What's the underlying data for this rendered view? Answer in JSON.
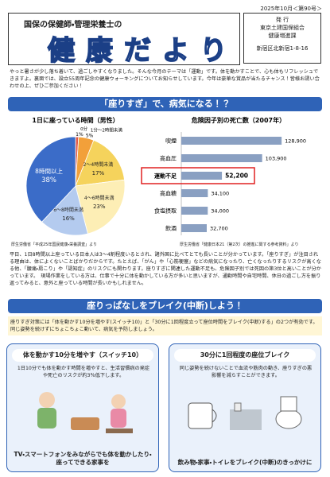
{
  "header": {
    "issue": "2025年10月＜第90号＞",
    "subtitle": "国保の保健師・管理栄養士の",
    "title": "健康だより",
    "publisher": {
      "label": "発 行",
      "org": "東京土建国保組合",
      "dept": "健康増進課",
      "address": "新宿区北新宿1-8-16"
    }
  },
  "intro": "やっと暑さが少し落ち着いて、過ごしやすくなりました。そんな今月のテーマは「運動」です。体を動かすことで、心も体もリフレッシュできますよ。裏面では、設立55周年記念の健康ウォーキングについてお知らせしています。今年は豪華な賞品が当たるチャンス！皆様お誘い合わせの上、ぜひご参加ください！",
  "section1": {
    "heading": "「座りすぎ」で、病気になる！？",
    "body": "平日、1日8時間以上座っている日本人は3～4割程度いるとされ、諸外国に比べてとても長いことが分かっています。「座りすぎ」が注目される理由は、体によくないことばかりだからです。たとえば、「がん」や「心筋梗塞」などの病気になったり、亡くなったりするリスクが高くなる他、「腰痛・肩こり」や「認知症」のリスクにも関わります。座りすぎに関連した運動不足も、危険因子別では死因の第3位と高いことが分かっています。　現場作業をしている方は、仕事で十分に体を動かしている方が多いと思いますが、通勤時間や自宅時間、休日の過ごし方を振り返ってみると、意外と座っている時間が長いかもしれません。"
  },
  "chart_data": [
    {
      "type": "pie",
      "title": "1日に座っている時間（男性）",
      "categories": [
        "0分",
        "1分～2時間未満",
        "2～4時間未満",
        "4～6時間未満",
        "6～8時間未満",
        "8時間以上"
      ],
      "values": [
        1,
        5,
        17,
        23,
        16,
        38
      ],
      "value_labels": [
        "1%",
        "5%",
        "17%",
        "23%",
        "16%",
        "38%"
      ],
      "colors": [
        "#e05a4a",
        "#f2a03a",
        "#f5d35c",
        "#fdeeb5",
        "#b4cbef",
        "#3b6cc8"
      ],
      "source": "厚生労働省「平成25年国民健康・栄養調査」より"
    },
    {
      "type": "hbar",
      "title": "危険因子別の死亡数（2007年）",
      "categories": [
        "喫煙",
        "高血圧",
        "運動不足",
        "高血糖",
        "食塩摂取",
        "飲酒"
      ],
      "values": [
        128900,
        103900,
        52200,
        34100,
        34000,
        32700
      ],
      "value_labels": [
        "128,900",
        "103,900",
        "52,200",
        "34,100",
        "34,000",
        "32,700"
      ],
      "xlim": [
        0,
        140000
      ],
      "color": "#8aa0c2",
      "highlight": 2,
      "highlight_color": "#e02020",
      "source": "厚生労働省「健康日本21（第2次）の推進に関する参考資料」より"
    }
  ],
  "section2": {
    "heading": "座りっぱなしをブレイク(中断)しよう！",
    "lead": "座りすぎ対策には「体を動かす10分を増やす(スイッチ10)」と「30分に1回程度立って座位時間をブレイク(中断)する」の2つが有効です。同じ姿勢を続けずにちょこちょこ動いて、病気を予防しましょう。",
    "boxes": [
      {
        "title": "体を動かす10分を増やす（スイッチ10）",
        "text": "1日10分でも体を動かす時間を増やすと、生活習慣病の発症や死亡のリスクが約3％低下します。",
        "caption": "TV・スマートフォンをみながらでも体を動かしたり・座ってできる家事を"
      },
      {
        "title": "30分に1回程度の座位ブレイク",
        "text": "同じ姿勢を続けないことで血流や筋肉の動き、座りすぎの悪影響を減らすことができます。",
        "caption": "飲み物・家事・トイレをブレイク(中断)のきっかけに"
      }
    ]
  }
}
